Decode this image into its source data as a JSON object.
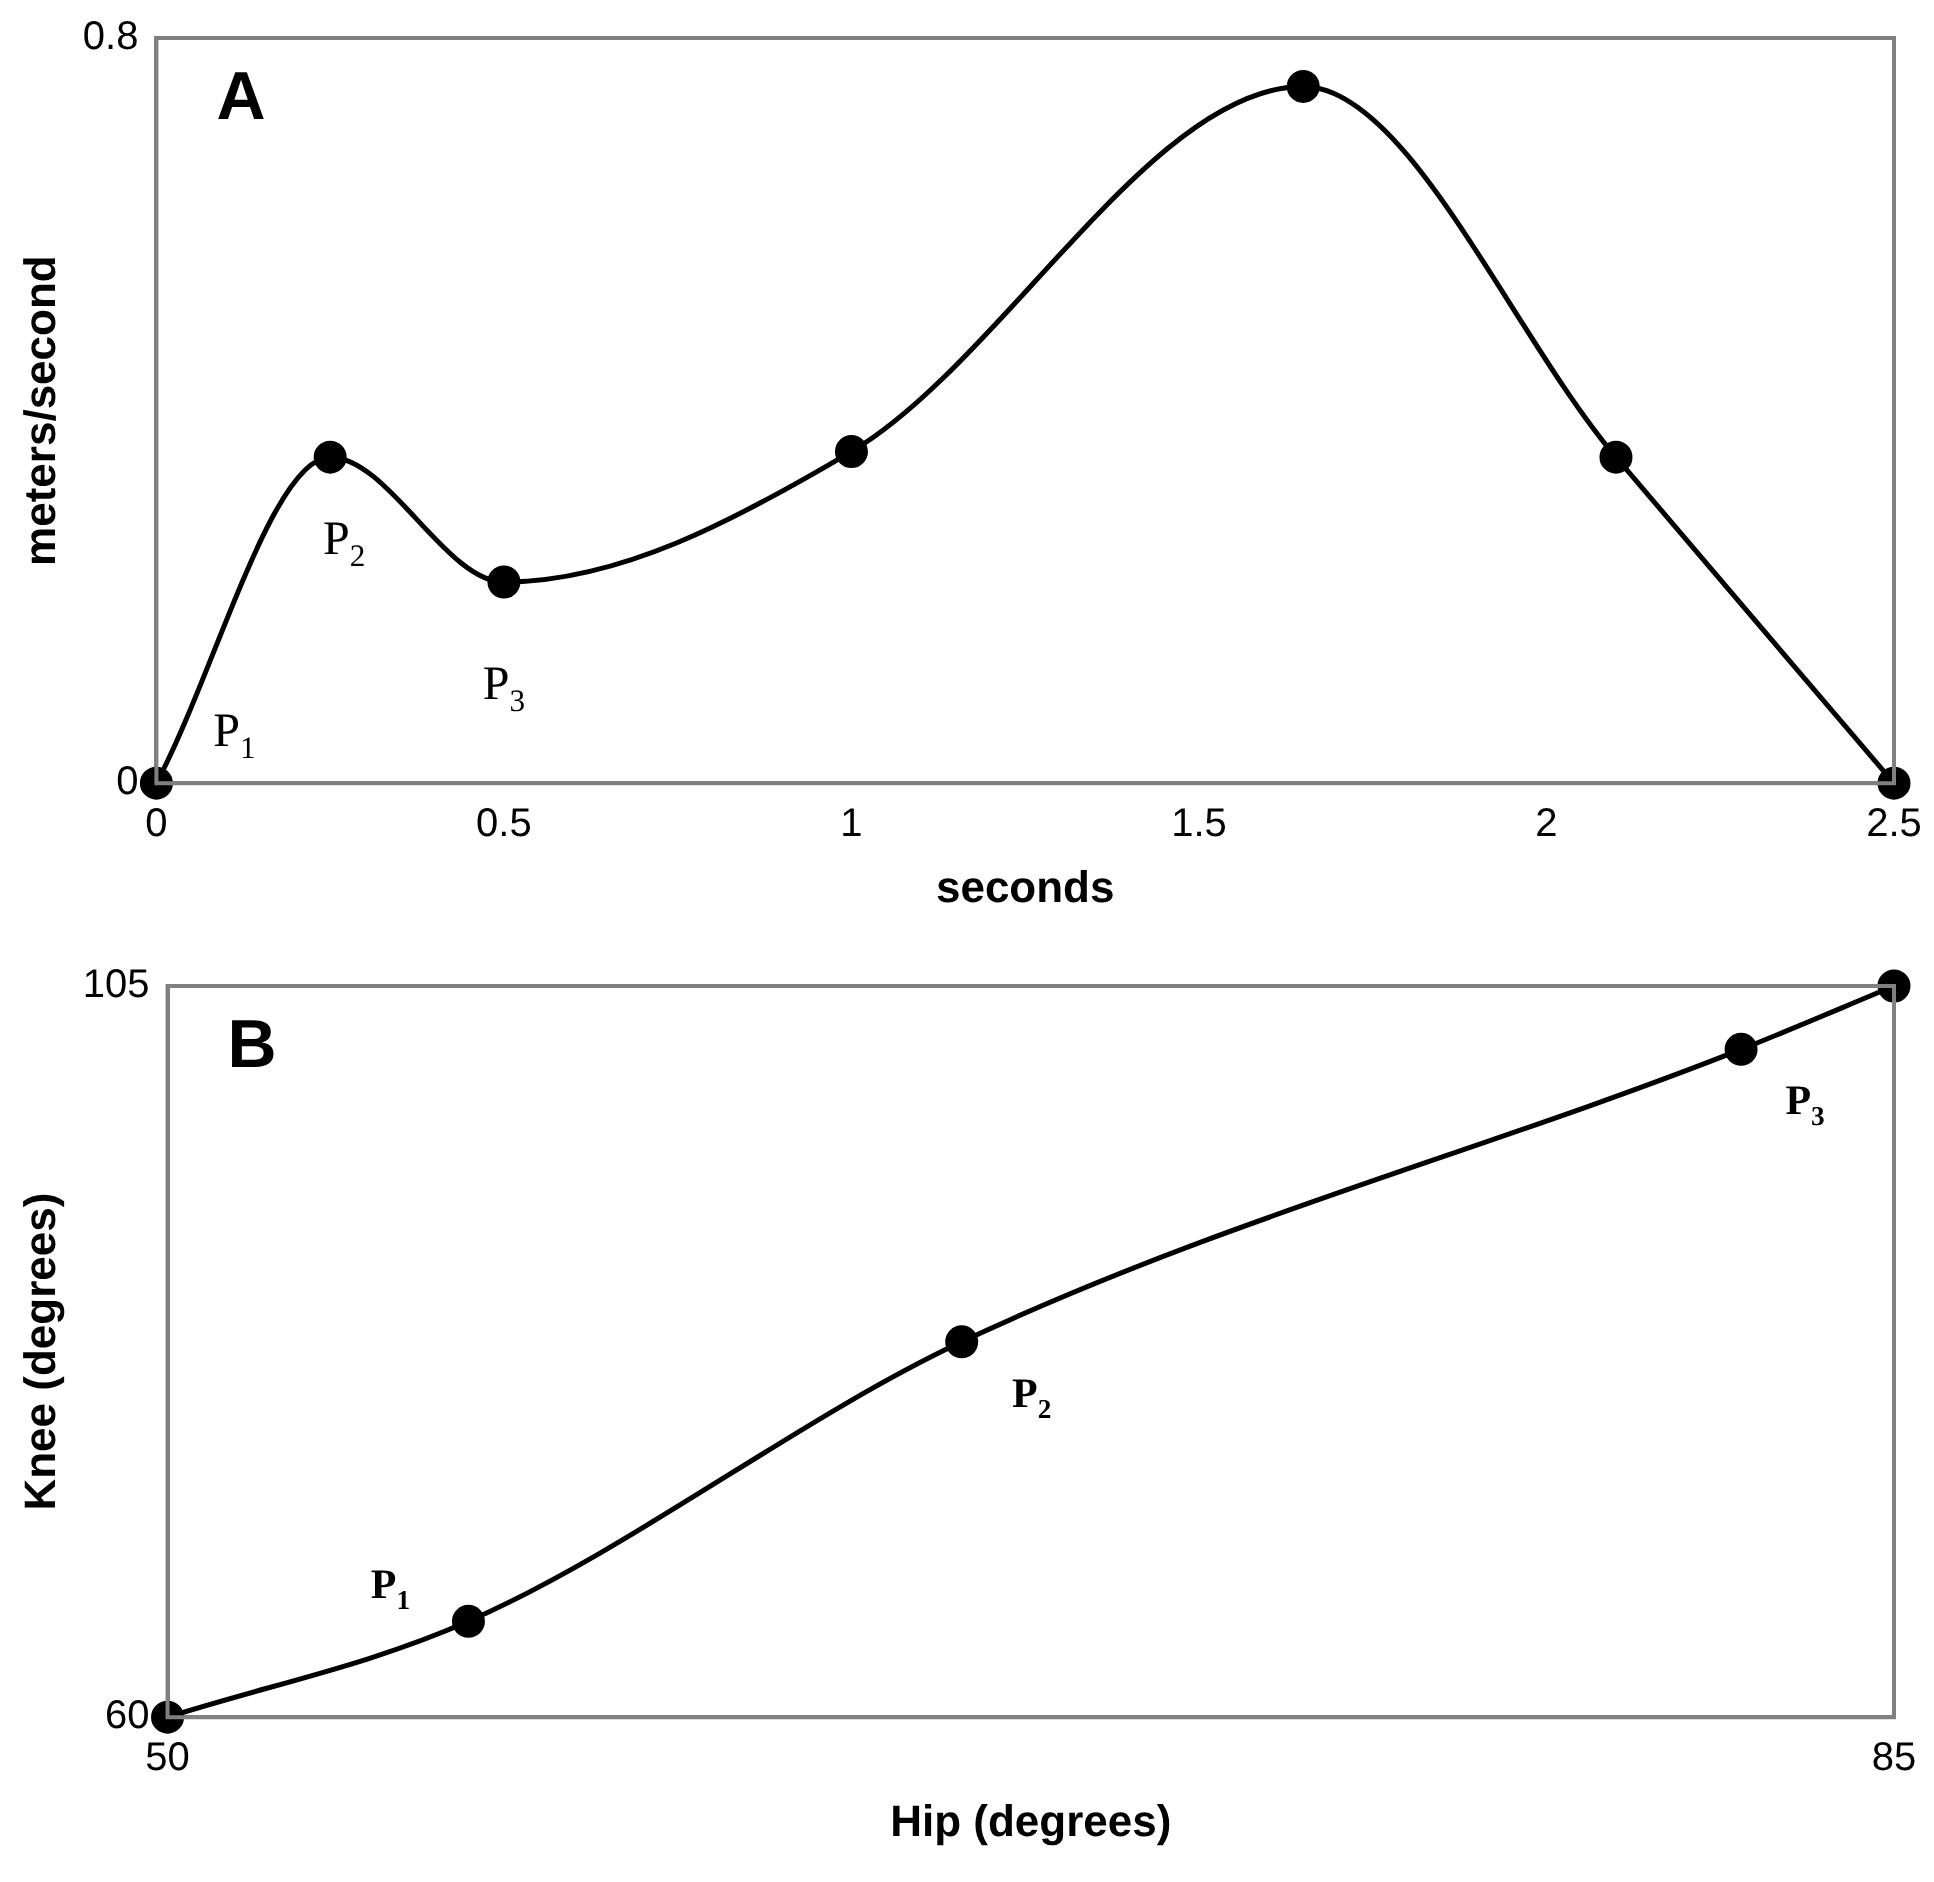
{
  "chart_data": [
    {
      "type": "line",
      "title": "A",
      "xlabel": "seconds",
      "ylabel": "meters/second",
      "marker": "circle",
      "grid": false,
      "legend": false,
      "xlim": [
        0,
        2.5
      ],
      "xticks": [
        0,
        0.5,
        1,
        1.5,
        2,
        2.5
      ],
      "ylim": [
        0,
        0.8
      ],
      "yticks": [
        0,
        0.8
      ],
      "series": [
        {
          "color": "#000000",
          "x": [
            0,
            0.25,
            0.5,
            1,
            1.65,
            2.1,
            2.5
          ],
          "values": [
            0,
            0.35,
            0.216,
            0.356,
            0.748,
            0.35,
            0
          ]
        }
      ],
      "annotations": [
        {
          "text": "P$_{1}$",
          "x": 0,
          "y": 0
        },
        {
          "text": "P$_{2}$",
          "x": 0.25,
          "y": 0.35
        },
        {
          "text": "P$_{3}$",
          "x": 0.5,
          "y": 0.216
        }
      ]
    },
    {
      "type": "line",
      "title": "B",
      "xlabel": "Hip (degrees)",
      "ylabel": "Knee (degrees)",
      "marker": "circle",
      "grid": false,
      "legend": false,
      "xlim": [
        50,
        85
      ],
      "xticks": [
        50,
        85
      ],
      "ylim": [
        60,
        105
      ],
      "yticks": [
        60,
        105
      ],
      "series": [
        {
          "color": "#000000",
          "x": [
            50,
            56.1,
            66.1,
            81.9,
            85
          ],
          "values": [
            60,
            65.9,
            83.1,
            101.1,
            105
          ]
        }
      ],
      "annotations": [
        {
          "text": "P$_{1}$",
          "x": 56.1,
          "y": 65.9
        },
        {
          "text": "P$_{2}$",
          "x": 66.1,
          "y": 83.1
        },
        {
          "text": "P$_{3}$",
          "x": 81.9,
          "y": 101.1
        }
      ]
    }
  ]
}
